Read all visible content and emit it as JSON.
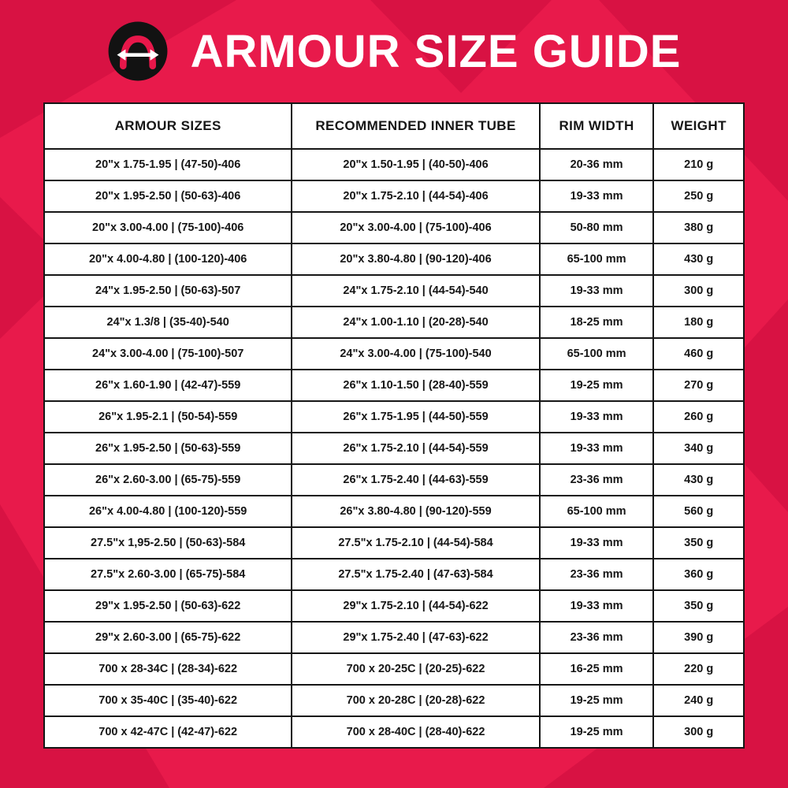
{
  "header": {
    "title": "ARMOUR SIZE GUIDE"
  },
  "icons": {
    "logo": "tire-width-arrow-logo"
  },
  "colors": {
    "background": "#e81a4b",
    "background_accent": "#d81243",
    "table_background": "#ffffff",
    "border": "#161616",
    "text": "#161616",
    "title_text": "#ffffff",
    "logo_circle": "#121212",
    "logo_tire": "#e8174a",
    "logo_arrow": "#ffffff"
  },
  "chart_data": {
    "type": "table",
    "title": "ARMOUR SIZE GUIDE",
    "columns": [
      "ARMOUR SIZES",
      "RECOMMENDED INNER TUBE",
      "RIM WIDTH",
      "WEIGHT"
    ],
    "rows": [
      [
        "20\"x 1.75-1.95 | (47-50)-406",
        "20\"x 1.50-1.95 | (40-50)-406",
        "20-36 mm",
        "210 g"
      ],
      [
        "20\"x 1.95-2.50 | (50-63)-406",
        "20\"x 1.75-2.10 | (44-54)-406",
        "19-33 mm",
        "250 g"
      ],
      [
        "20\"x 3.00-4.00 | (75-100)-406",
        "20\"x 3.00-4.00 | (75-100)-406",
        "50-80 mm",
        "380 g"
      ],
      [
        "20\"x 4.00-4.80 | (100-120)-406",
        "20\"x 3.80-4.80 | (90-120)-406",
        "65-100 mm",
        "430 g"
      ],
      [
        "24\"x 1.95-2.50 | (50-63)-507",
        "24\"x 1.75-2.10 | (44-54)-540",
        "19-33 mm",
        "300 g"
      ],
      [
        "24\"x 1.3/8 | (35-40)-540",
        "24\"x 1.00-1.10 | (20-28)-540",
        "18-25 mm",
        "180 g"
      ],
      [
        "24\"x 3.00-4.00 | (75-100)-507",
        "24\"x 3.00-4.00 | (75-100)-540",
        "65-100 mm",
        "460 g"
      ],
      [
        "26\"x 1.60-1.90 | (42-47)-559",
        "26\"x 1.10-1.50 | (28-40)-559",
        "19-25 mm",
        "270 g"
      ],
      [
        "26\"x 1.95-2.1 | (50-54)-559",
        "26\"x 1.75-1.95 | (44-50)-559",
        "19-33 mm",
        "260 g"
      ],
      [
        "26\"x 1.95-2.50 | (50-63)-559",
        "26\"x 1.75-2.10 | (44-54)-559",
        "19-33 mm",
        "340 g"
      ],
      [
        "26\"x 2.60-3.00 | (65-75)-559",
        "26\"x 1.75-2.40 | (44-63)-559",
        "23-36 mm",
        "430 g"
      ],
      [
        "26\"x 4.00-4.80 | (100-120)-559",
        "26\"x 3.80-4.80 | (90-120)-559",
        "65-100 mm",
        "560 g"
      ],
      [
        "27.5\"x 1,95-2.50 | (50-63)-584",
        "27.5\"x 1.75-2.10 | (44-54)-584",
        "19-33 mm",
        "350 g"
      ],
      [
        "27.5\"x 2.60-3.00 | (65-75)-584",
        "27.5\"x 1.75-2.40 | (47-63)-584",
        "23-36 mm",
        "360 g"
      ],
      [
        "29\"x 1.95-2.50 | (50-63)-622",
        "29\"x 1.75-2.10 | (44-54)-622",
        "19-33 mm",
        "350 g"
      ],
      [
        "29\"x 2.60-3.00 | (65-75)-622",
        "29\"x 1.75-2.40 | (47-63)-622",
        "23-36 mm",
        "390 g"
      ],
      [
        "700 x 28-34C | (28-34)-622",
        "700 x 20-25C | (20-25)-622",
        "16-25 mm",
        "220 g"
      ],
      [
        "700 x 35-40C | (35-40)-622",
        "700 x 20-28C | (20-28)-622",
        "19-25 mm",
        "240 g"
      ],
      [
        "700 x 42-47C | (42-47)-622",
        "700 x 28-40C | (28-40)-622",
        "19-25 mm",
        "300 g"
      ]
    ]
  }
}
